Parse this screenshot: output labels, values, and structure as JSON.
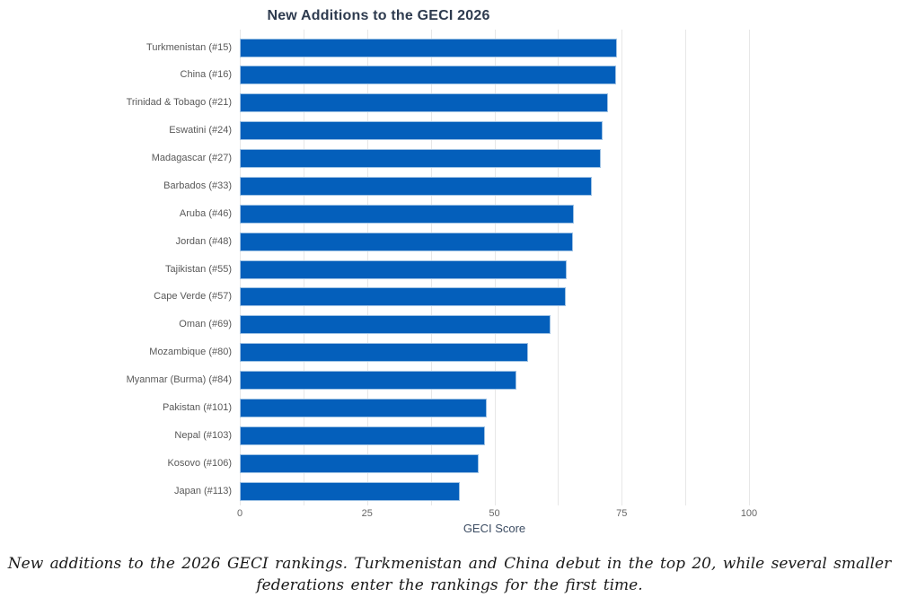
{
  "title": "New Additions to the GECI 2026",
  "chart_data": {
    "type": "bar",
    "orientation": "horizontal",
    "title": "New Additions to the GECI 2026",
    "xlabel": "GECI Score",
    "xlim": [
      0,
      100
    ],
    "xticks": [
      0,
      25,
      50,
      75,
      100
    ],
    "gridline_step": 12.5,
    "grid_on": true,
    "legend": "none",
    "bar_color": "#045fbb",
    "bar_edge_color": "#9ec2e4",
    "categories": [
      "Turkmenistan (#15)",
      "China (#16)",
      "Trinidad & Tobago (#21)",
      "Eswatini (#24)",
      "Madagascar (#27)",
      "Barbados (#33)",
      "Aruba (#46)",
      "Jordan (#48)",
      "Tajikistan (#55)",
      "Cape Verde (#57)",
      "Oman (#69)",
      "Mozambique (#80)",
      "Myanmar (Burma) (#84)",
      "Pakistan (#101)",
      "Nepal (#103)",
      "Kosovo (#106)",
      "Japan (#113)"
    ],
    "values": [
      74.1,
      73.9,
      72.3,
      71.2,
      70.9,
      69.1,
      65.6,
      65.4,
      64.2,
      64.0,
      61.0,
      56.6,
      54.3,
      48.5,
      48.1,
      46.9,
      43.2
    ]
  },
  "caption": {
    "line1": "New additions to the 2026 GECI rankings. Turkmenistan and China debut in the top 20, while several smaller",
    "line2": "federations enter the rankings for the first time."
  },
  "colors": {
    "title_text": "#2e3b4f",
    "label_text": "#595959",
    "tick_text": "#666666",
    "axis_label_text": "#3d4d63",
    "gridline": "#e7e7e7",
    "background": "#ffffff"
  }
}
